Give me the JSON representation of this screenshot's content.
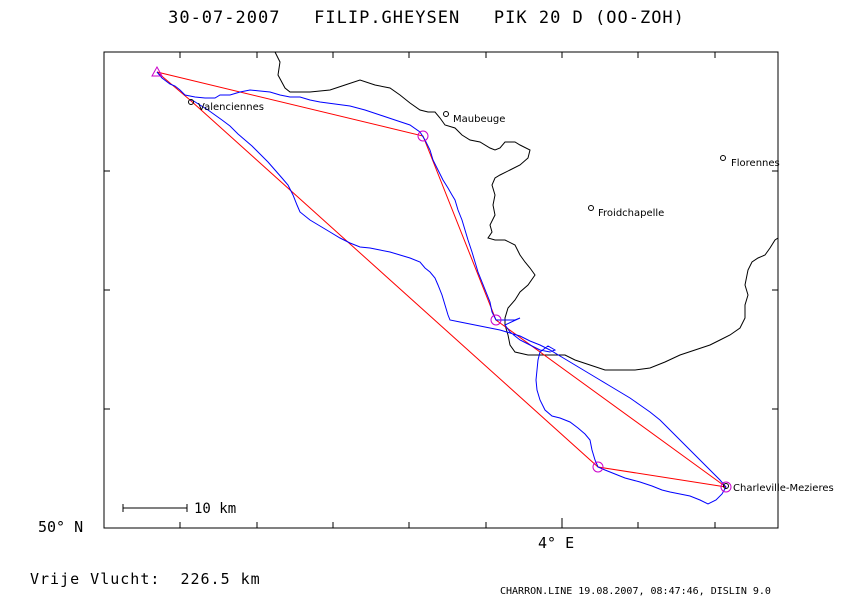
{
  "title": "30-07-2007   FILIP.GHEYSEN   PIK 20 D (OO-ZOH)",
  "latitude_label": "50° N",
  "longitude_label": "4° E",
  "scale_label": "10 km",
  "distance_text": "Vrije Vlucht:  226.5 km",
  "footer_text": "CHARRON.LINE 19.08.2007, 08:47:46, DISLIN 9.0",
  "colors": {
    "task_line": "#ff0000",
    "track": "#0000ff",
    "turnpoint_marker": "#cc00cc",
    "border": "#000000"
  },
  "cities": [
    {
      "name": "Valenciennes"
    },
    {
      "name": "Maubeuge"
    },
    {
      "name": "Florennes"
    },
    {
      "name": "Froidchapelle"
    },
    {
      "name": "Charleville-Mezieres"
    }
  ]
}
